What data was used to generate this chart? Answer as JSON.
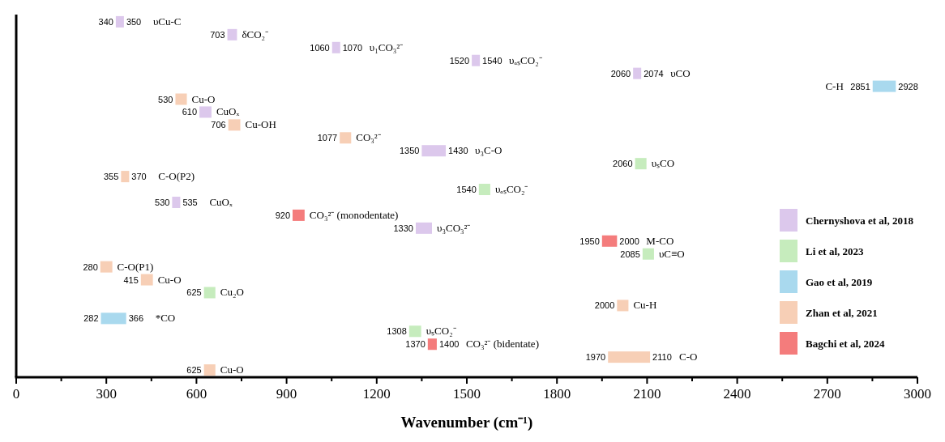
{
  "chart_data": {
    "type": "bar",
    "orientation": "horizontal",
    "xlabel": "Wavenumber (cm⁻¹)",
    "categories": [
      "υCu-C",
      "δCO₂⁻",
      "υ₁CO₃²⁻",
      "υₐₛCO₂⁻",
      "υCO",
      "C-H",
      "Cu-O",
      "CuOₓ",
      "Cu-OH",
      "CO₃²⁻",
      "υ₃C-O",
      "υₛCO",
      "C-O(P2)",
      "υₐₛCO₂⁻",
      "CuOₓ",
      "CO₃²⁻ (monodentate)",
      "υ₃CO₃²⁻",
      "M-CO",
      "υC≡O",
      "C-O(P1)",
      "Cu-O",
      "Cu₂O",
      "Cu-H",
      "*CO",
      "υₛCO₂⁻",
      "CO₃²⁻ (bidentate)",
      "C-O",
      "Cu-O"
    ],
    "series": [
      {
        "name": "Chernyshova et al, 2018",
        "color": "#dcc8ec",
        "base": [
          340,
          703,
          1060,
          1520,
          2060,
          null,
          null,
          610,
          null,
          null,
          1350,
          null,
          null,
          null,
          530,
          null,
          1330,
          null,
          null,
          null,
          null,
          null,
          null,
          null,
          null,
          null,
          null,
          null
        ],
        "values": [
          10,
          32,
          10,
          20,
          14,
          null,
          null,
          40,
          null,
          null,
          80,
          null,
          null,
          null,
          5,
          null,
          54,
          null,
          null,
          null,
          null,
          null,
          null,
          null,
          null,
          null,
          null,
          null
        ]
      },
      {
        "name": "Li et al, 2023",
        "color": "#c6ecbd",
        "base": [
          null,
          null,
          null,
          null,
          null,
          null,
          null,
          null,
          null,
          null,
          null,
          2060,
          null,
          1540,
          null,
          null,
          null,
          null,
          2085,
          null,
          null,
          625,
          null,
          null,
          1308,
          null,
          null,
          null
        ],
        "values": [
          null,
          null,
          null,
          null,
          null,
          null,
          null,
          null,
          null,
          null,
          null,
          38,
          null,
          38,
          null,
          null,
          null,
          null,
          38,
          null,
          null,
          38,
          null,
          null,
          40,
          null,
          null,
          null
        ]
      },
      {
        "name": "Gao et al, 2019",
        "color": "#a9d9ee",
        "base": [
          null,
          null,
          null,
          null,
          null,
          2851,
          null,
          null,
          null,
          null,
          null,
          null,
          null,
          null,
          null,
          null,
          null,
          null,
          null,
          null,
          null,
          null,
          null,
          282,
          null,
          null,
          null,
          null
        ],
        "values": [
          null,
          null,
          null,
          null,
          null,
          77,
          null,
          null,
          null,
          null,
          null,
          null,
          null,
          null,
          null,
          null,
          null,
          null,
          null,
          null,
          null,
          null,
          null,
          84,
          null,
          null,
          null,
          null
        ]
      },
      {
        "name": "Zhan et al, 2021",
        "color": "#f7cfb6",
        "base": [
          null,
          null,
          null,
          null,
          null,
          null,
          530,
          null,
          706,
          1077,
          null,
          null,
          355,
          null,
          null,
          null,
          null,
          null,
          null,
          280,
          415,
          null,
          2000,
          null,
          null,
          null,
          1970,
          625
        ],
        "values": [
          null,
          null,
          null,
          null,
          null,
          null,
          38,
          null,
          40,
          38,
          null,
          null,
          15,
          null,
          null,
          null,
          null,
          null,
          null,
          40,
          40,
          null,
          38,
          null,
          null,
          null,
          140,
          38
        ]
      },
      {
        "name": "Bagchi et al, 2024",
        "color": "#f47c7c",
        "base": [
          null,
          null,
          null,
          null,
          null,
          null,
          null,
          null,
          null,
          null,
          null,
          null,
          null,
          null,
          null,
          920,
          null,
          1950,
          null,
          null,
          null,
          null,
          null,
          null,
          null,
          1370,
          null,
          null
        ],
        "values": [
          null,
          null,
          null,
          null,
          null,
          null,
          null,
          null,
          null,
          null,
          null,
          null,
          null,
          null,
          null,
          40,
          null,
          50,
          null,
          null,
          null,
          null,
          null,
          null,
          null,
          30,
          null,
          null
        ]
      }
    ],
    "annotations": [
      {
        "text": "340",
        "x": 340,
        "y": "υCu-C"
      },
      {
        "text": "350",
        "x": 350,
        "y": "υCu-C"
      },
      {
        "text": "703",
        "x": 703,
        "y": "δCO₂⁻"
      },
      {
        "text": "1060",
        "x": 1060,
        "y": "υ₁CO₃²⁻"
      },
      {
        "text": "1070",
        "x": 1070,
        "y": "υ₁CO₃²⁻"
      },
      {
        "text": "1520",
        "x": 1520,
        "y": "υₐₛCO₂⁻"
      },
      {
        "text": "1540",
        "x": 1540,
        "y": "υₐₛCO₂⁻"
      },
      {
        "text": "2060",
        "x": 2060,
        "y": "υCO"
      },
      {
        "text": "2074",
        "x": 2074,
        "y": "υCO"
      },
      {
        "text": "2851",
        "x": 2851,
        "y": "C-H"
      },
      {
        "text": "2928",
        "x": 2928,
        "y": "C-H"
      },
      {
        "text": "530",
        "x": 530,
        "y": "Cu-O"
      },
      {
        "text": "610",
        "x": 610,
        "y": "CuOₓ"
      },
      {
        "text": "706",
        "x": 706,
        "y": "Cu-OH"
      },
      {
        "text": "1077",
        "x": 1077,
        "y": "CO₃²⁻"
      },
      {
        "text": "1350",
        "x": 1350,
        "y": "υ₃C-O"
      },
      {
        "text": "1430",
        "x": 1430,
        "y": "υ₃C-O"
      },
      {
        "text": "2060",
        "x": 2060,
        "y": "υₛCO"
      },
      {
        "text": "355",
        "x": 355,
        "y": "C-O(P2)"
      },
      {
        "text": "370",
        "x": 370,
        "y": "C-O(P2)"
      },
      {
        "text": "1540",
        "x": 1540
      },
      {
        "text": "530",
        "x": 530
      },
      {
        "text": "535",
        "x": 535
      },
      {
        "text": "920",
        "x": 920,
        "y": "CO₃²⁻ (monodentate)"
      },
      {
        "text": "1330",
        "x": 1330,
        "y": "υ₃CO₃²⁻"
      },
      {
        "text": "1950",
        "x": 1950,
        "y": "M-CO"
      },
      {
        "text": "2000",
        "x": 2000,
        "y": "M-CO"
      },
      {
        "text": "2085",
        "x": 2085,
        "y": "υC≡O"
      },
      {
        "text": "280",
        "x": 280,
        "y": "C-O(P1)"
      },
      {
        "text": "415",
        "x": 415
      },
      {
        "text": "625",
        "x": 625,
        "y": "Cu₂O"
      },
      {
        "text": "2000",
        "x": 2000,
        "y": "Cu-H"
      },
      {
        "text": "282",
        "x": 282,
        "y": "*CO"
      },
      {
        "text": "366",
        "x": 366,
        "y": "*CO"
      },
      {
        "text": "1308",
        "x": 1308,
        "y": "υₛCO₂⁻"
      },
      {
        "text": "1370",
        "x": 1370,
        "y": "CO₃²⁻ (bidentate)"
      },
      {
        "text": "1400",
        "x": 1400,
        "y": "CO₃²⁻ (bidentate)"
      },
      {
        "text": "1970",
        "x": 1970,
        "y": "C-O"
      },
      {
        "text": "2110",
        "x": 2110,
        "y": "C-O"
      },
      {
        "text": "625",
        "x": 625
      }
    ],
    "xlim": [
      0,
      3000
    ],
    "xticks": [
      0,
      {
        "value": 150,
        "label": null
      },
      300,
      {
        "value": 450,
        "label": null
      },
      600,
      {
        "value": 750,
        "label": null
      },
      900,
      {
        "value": 1050,
        "label": null
      },
      1200,
      {
        "value": 1350,
        "label": null
      },
      1500,
      {
        "value": 1650,
        "label": null
      },
      1800,
      {
        "value": 1950,
        "label": null
      },
      2100,
      {
        "value": 2250,
        "label": null
      },
      2400,
      {
        "value": 2550,
        "label": null
      },
      2700,
      {
        "value": 2850,
        "label": null
      },
      3000
    ],
    "tick_labels": "x",
    "legend": "right"
  }
}
